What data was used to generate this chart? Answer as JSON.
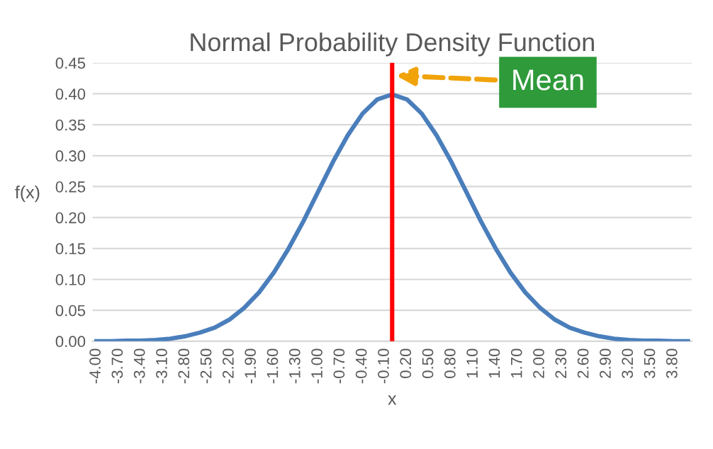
{
  "chart_data": {
    "type": "line",
    "title": "Normal Probability Density Function",
    "xlabel": "x",
    "ylabel": "f(x)",
    "x": [
      -4.0,
      -3.8,
      -3.6,
      -3.4,
      -3.2,
      -3.0,
      -2.8,
      -2.6,
      -2.4,
      -2.2,
      -2.0,
      -1.8,
      -1.6,
      -1.4,
      -1.2,
      -1.0,
      -0.8,
      -0.6,
      -0.4,
      -0.2,
      0.0,
      0.2,
      0.4,
      0.6,
      0.8,
      1.0,
      1.2,
      1.4,
      1.6,
      1.8,
      2.0,
      2.2,
      2.4,
      2.6,
      2.8,
      3.0,
      3.2,
      3.4,
      3.6,
      3.8,
      4.0
    ],
    "series": [
      {
        "color": "#4a7ebb",
        "values": [
          0.0,
          0.0,
          0.001,
          0.001,
          0.002,
          0.004,
          0.008,
          0.014,
          0.022,
          0.035,
          0.054,
          0.079,
          0.111,
          0.15,
          0.194,
          0.242,
          0.29,
          0.333,
          0.368,
          0.391,
          0.399,
          0.391,
          0.368,
          0.333,
          0.29,
          0.242,
          0.194,
          0.15,
          0.111,
          0.079,
          0.054,
          0.035,
          0.022,
          0.014,
          0.008,
          0.004,
          0.002,
          0.001,
          0.001,
          0.0,
          0.0
        ]
      }
    ],
    "xlim": [
      -4.05,
      4.05
    ],
    "xticks": [
      {
        "value": -4.0,
        "label": "-4.00"
      },
      {
        "value": -3.7,
        "label": "-3.70"
      },
      {
        "value": -3.4,
        "label": "-3.40"
      },
      {
        "value": -3.1,
        "label": "-3.10"
      },
      {
        "value": -2.8,
        "label": "-2.80"
      },
      {
        "value": -2.5,
        "label": "-2.50"
      },
      {
        "value": -2.2,
        "label": "-2.20"
      },
      {
        "value": -1.9,
        "label": "-1.90"
      },
      {
        "value": -1.6,
        "label": "-1.60"
      },
      {
        "value": -1.3,
        "label": "-1.30"
      },
      {
        "value": -1.0,
        "label": "-1.00"
      },
      {
        "value": -0.7,
        "label": "-0.70"
      },
      {
        "value": -0.4,
        "label": "-0.40"
      },
      {
        "value": -0.1,
        "label": "-0.10"
      },
      {
        "value": 0.2,
        "label": "0.20"
      },
      {
        "value": 0.5,
        "label": "0.50"
      },
      {
        "value": 0.8,
        "label": "0.80"
      },
      {
        "value": 1.1,
        "label": "1.10"
      },
      {
        "value": 1.4,
        "label": "1.40"
      },
      {
        "value": 1.7,
        "label": "1.70"
      },
      {
        "value": 2.0,
        "label": "2.00"
      },
      {
        "value": 2.3,
        "label": "2.30"
      },
      {
        "value": 2.6,
        "label": "2.60"
      },
      {
        "value": 2.9,
        "label": "2.90"
      },
      {
        "value": 3.2,
        "label": "3.20"
      },
      {
        "value": 3.5,
        "label": "3.50"
      },
      {
        "value": 3.8,
        "label": "3.80"
      }
    ],
    "ylim": [
      0,
      0.45
    ],
    "yticks": [
      {
        "value": 0,
        "label": "0.00"
      },
      {
        "value": 0.05,
        "label": "0.05"
      },
      {
        "value": 0.1,
        "label": "0.10"
      },
      {
        "value": 0.15,
        "label": "0.15"
      },
      {
        "value": 0.2,
        "label": "0.20"
      },
      {
        "value": 0.25,
        "label": "0.25"
      },
      {
        "value": 0.3,
        "label": "0.30"
      },
      {
        "value": 0.35,
        "label": "0.35"
      },
      {
        "value": 0.4,
        "label": "0.40"
      },
      {
        "value": 0.45,
        "label": "0.45"
      }
    ],
    "ref_lines": [
      {
        "axis": "x",
        "value": 0,
        "color": "#ff0000"
      }
    ],
    "annotations": [
      "Mean"
    ],
    "grid": "y",
    "legend": false,
    "marker": "none",
    "line_style": "solid"
  }
}
